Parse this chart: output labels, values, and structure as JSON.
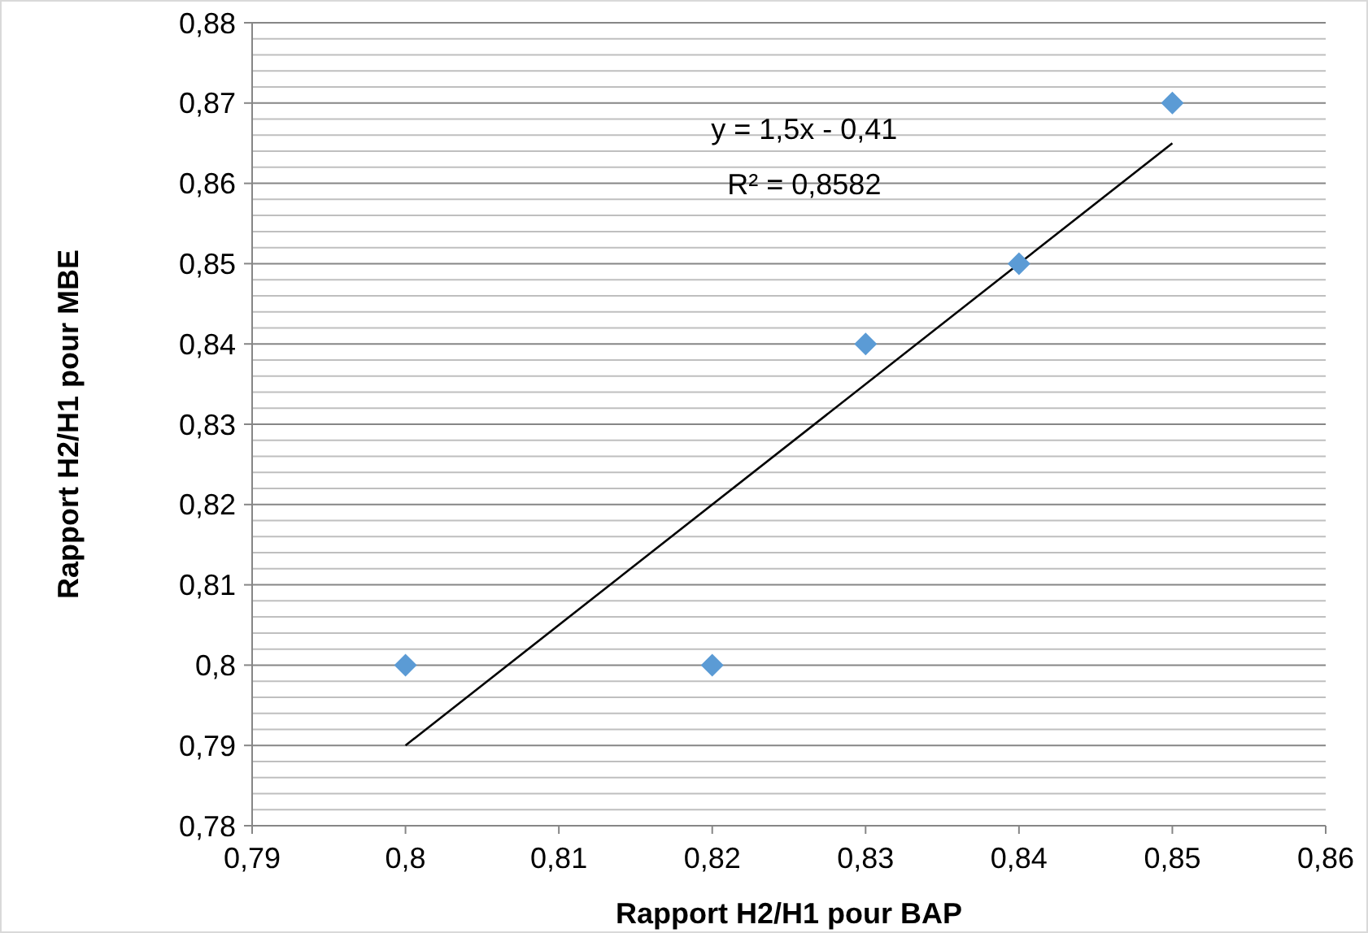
{
  "chart_data": {
    "type": "scatter",
    "xlabel": "Rapport H2/H1 pour BAP",
    "ylabel": "Rapport H2/H1 pour MBE",
    "xlim": [
      0.79,
      0.86
    ],
    "xticks": [
      {
        "value": 0.79,
        "label": "0,79"
      },
      {
        "value": 0.8,
        "label": "0,8"
      },
      {
        "value": 0.81,
        "label": "0,81"
      },
      {
        "value": 0.82,
        "label": "0,82"
      },
      {
        "value": 0.83,
        "label": "0,83"
      },
      {
        "value": 0.84,
        "label": "0,84"
      },
      {
        "value": 0.85,
        "label": "0,85"
      },
      {
        "value": 0.86,
        "label": "0,86"
      }
    ],
    "ylim": [
      0.78,
      0.88
    ],
    "yticks": [
      {
        "value": 0.78,
        "label": "0,78"
      },
      {
        "value": 0.782,
        "label": null
      },
      {
        "value": 0.784,
        "label": null
      },
      {
        "value": 0.786,
        "label": null
      },
      {
        "value": 0.788,
        "label": null
      },
      {
        "value": 0.79,
        "label": "0,79"
      },
      {
        "value": 0.792,
        "label": null
      },
      {
        "value": 0.794,
        "label": null
      },
      {
        "value": 0.796,
        "label": null
      },
      {
        "value": 0.798,
        "label": null
      },
      {
        "value": 0.8,
        "label": "0,8"
      },
      {
        "value": 0.802,
        "label": null
      },
      {
        "value": 0.804,
        "label": null
      },
      {
        "value": 0.806,
        "label": null
      },
      {
        "value": 0.808,
        "label": null
      },
      {
        "value": 0.81,
        "label": "0,81"
      },
      {
        "value": 0.812,
        "label": null
      },
      {
        "value": 0.814,
        "label": null
      },
      {
        "value": 0.816,
        "label": null
      },
      {
        "value": 0.818,
        "label": null
      },
      {
        "value": 0.82,
        "label": "0,82"
      },
      {
        "value": 0.822,
        "label": null
      },
      {
        "value": 0.824,
        "label": null
      },
      {
        "value": 0.826,
        "label": null
      },
      {
        "value": 0.828,
        "label": null
      },
      {
        "value": 0.83,
        "label": "0,83"
      },
      {
        "value": 0.832,
        "label": null
      },
      {
        "value": 0.834,
        "label": null
      },
      {
        "value": 0.836,
        "label": null
      },
      {
        "value": 0.838,
        "label": null
      },
      {
        "value": 0.84,
        "label": "0,84"
      },
      {
        "value": 0.842,
        "label": null
      },
      {
        "value": 0.844,
        "label": null
      },
      {
        "value": 0.846,
        "label": null
      },
      {
        "value": 0.848,
        "label": null
      },
      {
        "value": 0.85,
        "label": "0,85"
      },
      {
        "value": 0.852,
        "label": null
      },
      {
        "value": 0.854,
        "label": null
      },
      {
        "value": 0.856,
        "label": null
      },
      {
        "value": 0.858,
        "label": null
      },
      {
        "value": 0.86,
        "label": "0,86"
      },
      {
        "value": 0.862,
        "label": null
      },
      {
        "value": 0.864,
        "label": null
      },
      {
        "value": 0.866,
        "label": null
      },
      {
        "value": 0.868,
        "label": null
      },
      {
        "value": 0.87,
        "label": "0,87"
      },
      {
        "value": 0.872,
        "label": null
      },
      {
        "value": 0.874,
        "label": null
      },
      {
        "value": 0.876,
        "label": null
      },
      {
        "value": 0.878,
        "label": null
      },
      {
        "value": 0.88,
        "label": "0,88"
      }
    ],
    "grid": "y",
    "marker": "diamond",
    "series": [
      {
        "color": "#5b9bd5",
        "x": [
          0.8,
          0.82,
          0.83,
          0.84,
          0.85
        ],
        "values": [
          0.8,
          0.8,
          0.84,
          0.85,
          0.87
        ]
      },
      {
        "type": "line",
        "marker": "none",
        "color": "#000000",
        "x": [
          0.8,
          0.85
        ],
        "values": [
          0.79,
          0.865
        ]
      }
    ],
    "annotations": [
      "y = 1,5x - 0,41",
      "R² = 0,8582"
    ]
  }
}
